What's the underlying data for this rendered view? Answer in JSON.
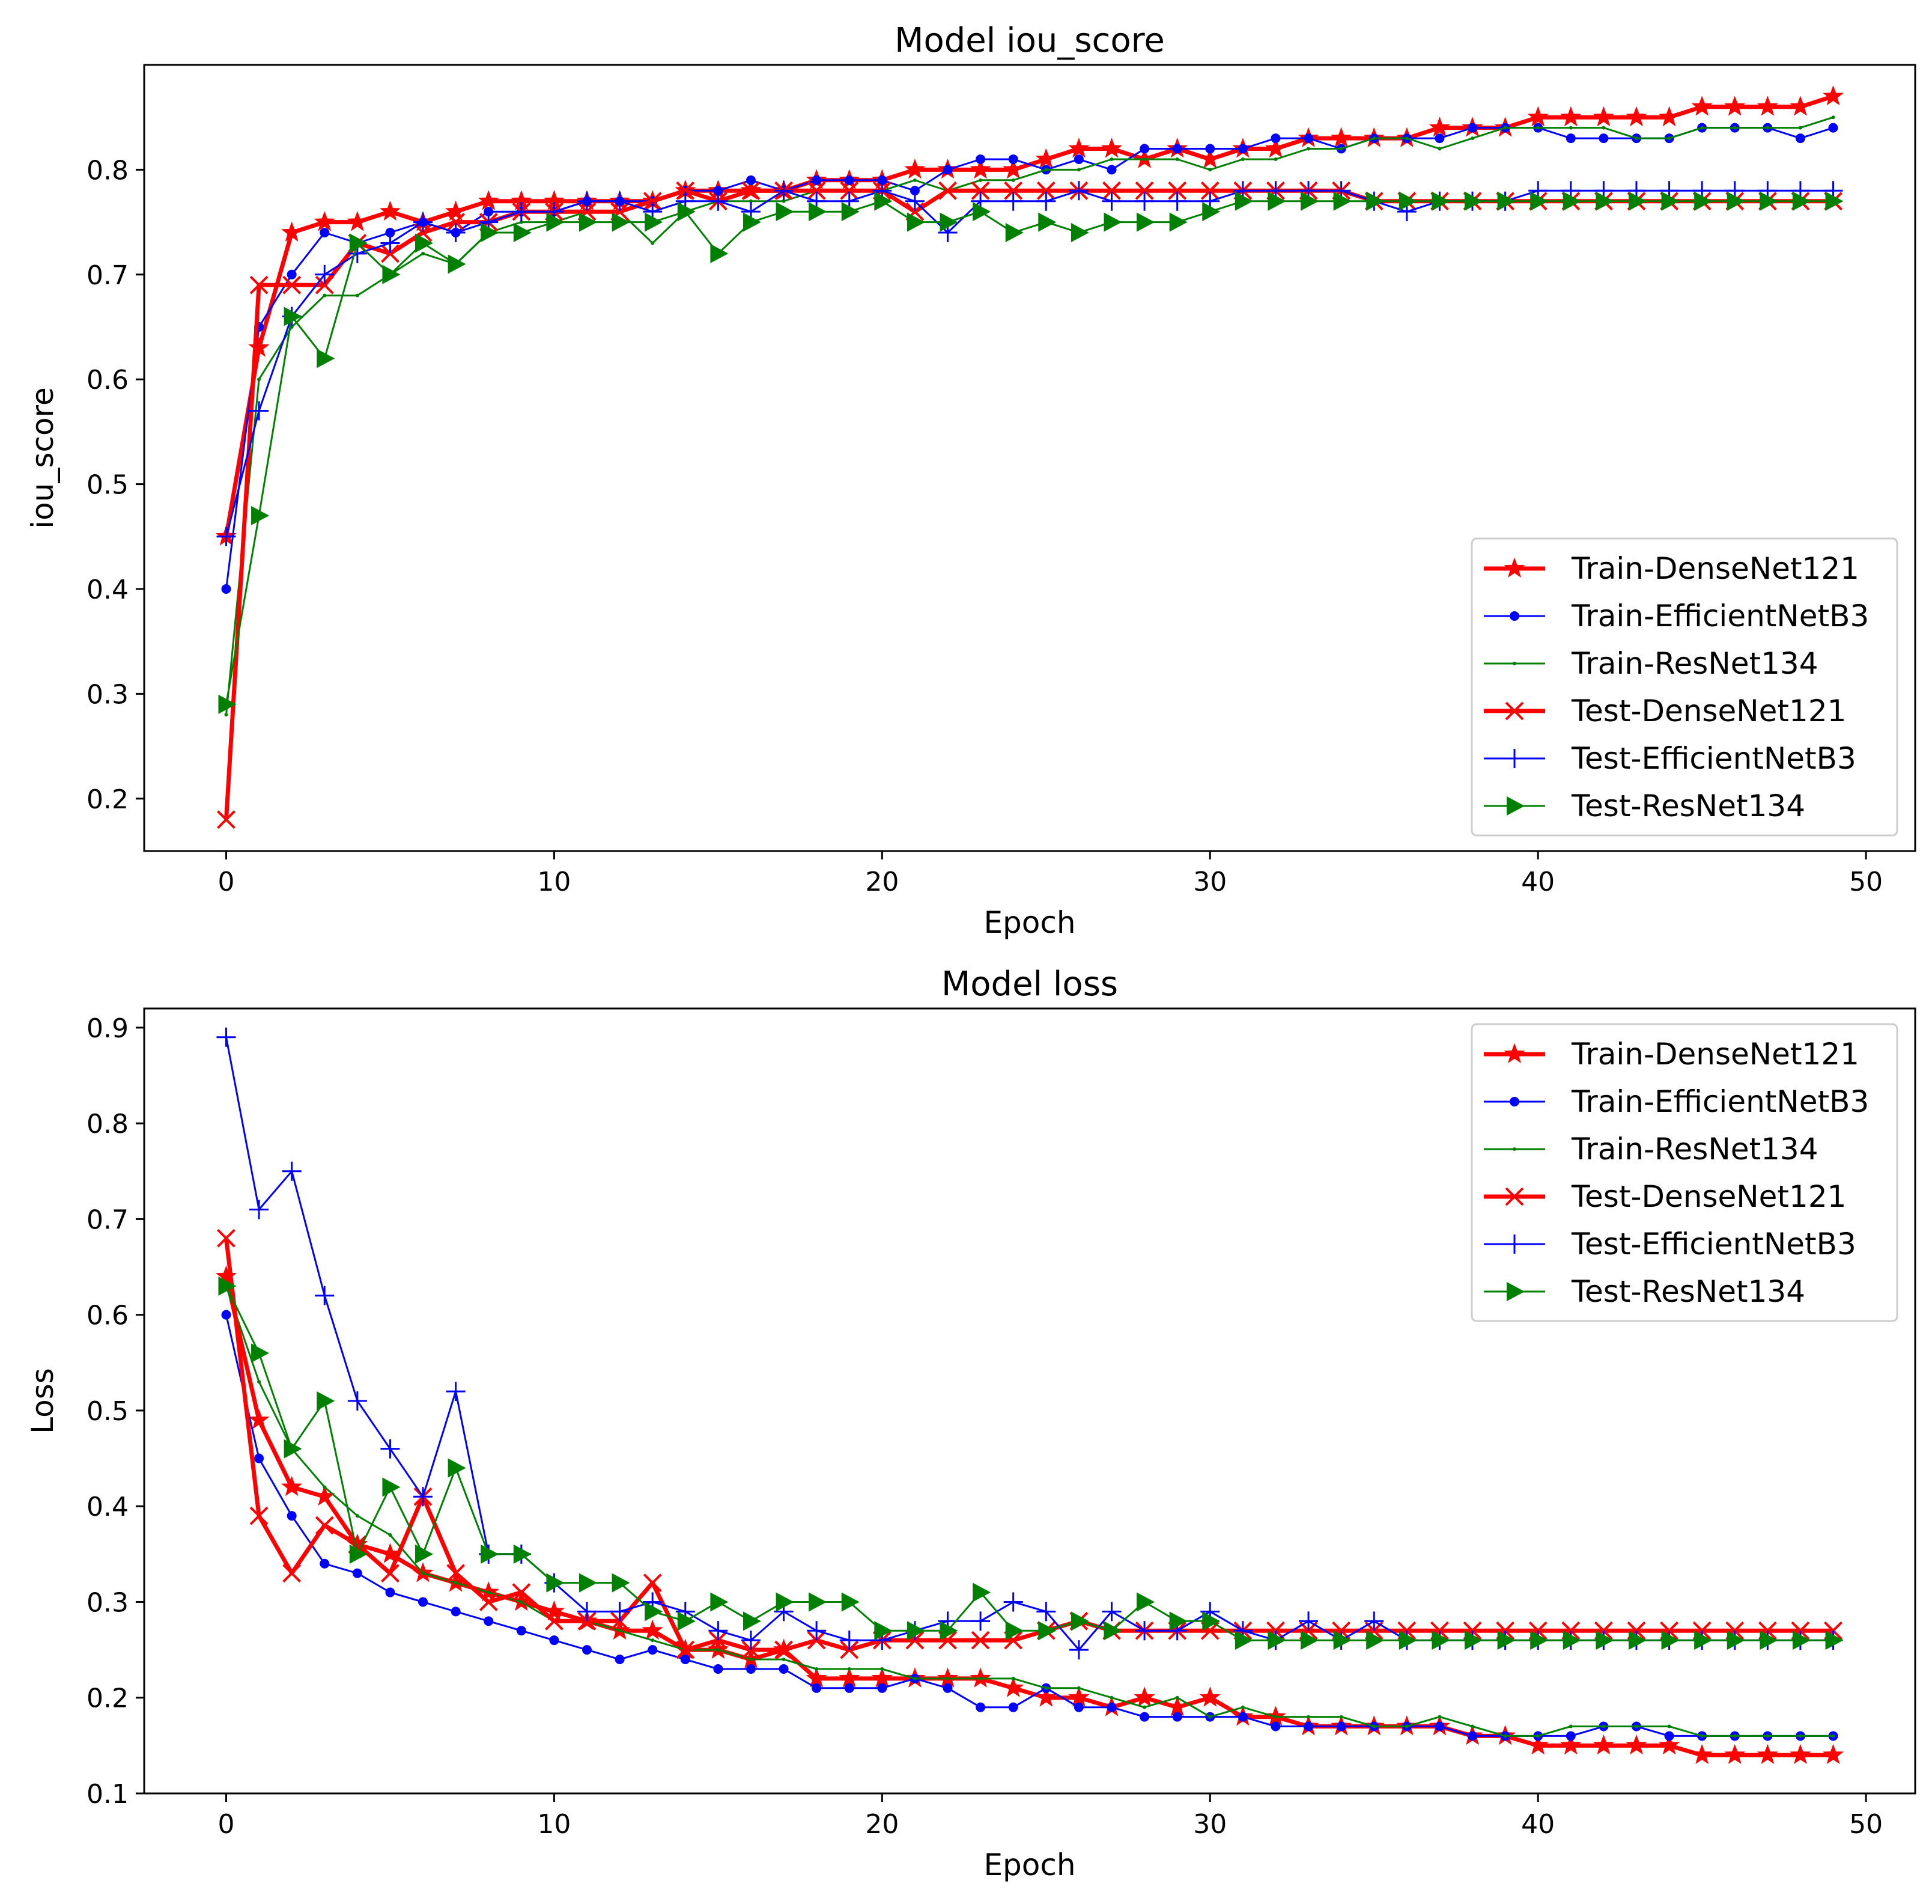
{
  "chart_data": [
    {
      "type": "line",
      "title": "Model iou_score",
      "xlabel": "Epoch",
      "ylabel": "iou_score",
      "xlim": [
        -2.5,
        51.5
      ],
      "ylim": [
        0.15,
        0.9
      ],
      "xticks": [
        0,
        10,
        20,
        30,
        40,
        50
      ],
      "yticks": [
        0.2,
        0.3,
        0.4,
        0.5,
        0.6,
        0.7,
        0.8
      ],
      "legend": "lower-right",
      "grid": false,
      "series": [
        {
          "name": "Train-DenseNet121",
          "color": "#ff0000",
          "marker": "star",
          "width": "thick",
          "values": [
            0.45,
            0.63,
            0.74,
            0.75,
            0.75,
            0.76,
            0.75,
            0.76,
            0.77,
            0.77,
            0.77,
            0.77,
            0.77,
            0.77,
            0.78,
            0.78,
            0.78,
            0.78,
            0.79,
            0.79,
            0.79,
            0.8,
            0.8,
            0.8,
            0.8,
            0.81,
            0.82,
            0.82,
            0.81,
            0.82,
            0.81,
            0.82,
            0.82,
            0.83,
            0.83,
            0.83,
            0.83,
            0.84,
            0.84,
            0.84,
            0.85,
            0.85,
            0.85,
            0.85,
            0.85,
            0.86,
            0.86,
            0.86,
            0.86,
            0.87
          ]
        },
        {
          "name": "Train-EfficientNetB3",
          "color": "#0000ff",
          "marker": "dot",
          "width": "thin",
          "values": [
            0.4,
            0.65,
            0.7,
            0.74,
            0.73,
            0.74,
            0.75,
            0.74,
            0.76,
            0.76,
            0.76,
            0.77,
            0.77,
            0.77,
            0.78,
            0.78,
            0.79,
            0.78,
            0.79,
            0.79,
            0.79,
            0.78,
            0.8,
            0.81,
            0.81,
            0.8,
            0.81,
            0.8,
            0.82,
            0.82,
            0.82,
            0.82,
            0.83,
            0.83,
            0.82,
            0.83,
            0.83,
            0.83,
            0.84,
            0.84,
            0.84,
            0.83,
            0.83,
            0.83,
            0.83,
            0.84,
            0.84,
            0.84,
            0.83,
            0.84
          ]
        },
        {
          "name": "Train-ResNet134",
          "color": "#008000",
          "marker": "small",
          "width": "thin",
          "values": [
            0.28,
            0.6,
            0.65,
            0.68,
            0.68,
            0.7,
            0.72,
            0.71,
            0.74,
            0.75,
            0.75,
            0.76,
            0.76,
            0.73,
            0.76,
            0.77,
            0.77,
            0.77,
            0.78,
            0.78,
            0.78,
            0.79,
            0.78,
            0.79,
            0.79,
            0.8,
            0.8,
            0.81,
            0.81,
            0.81,
            0.8,
            0.81,
            0.81,
            0.82,
            0.82,
            0.83,
            0.83,
            0.82,
            0.83,
            0.84,
            0.84,
            0.84,
            0.84,
            0.83,
            0.83,
            0.84,
            0.84,
            0.84,
            0.84,
            0.85
          ]
        },
        {
          "name": "Test-DenseNet121",
          "color": "#ff0000",
          "marker": "x",
          "width": "thick",
          "values": [
            0.18,
            0.69,
            0.69,
            0.69,
            0.73,
            0.72,
            0.74,
            0.75,
            0.75,
            0.76,
            0.76,
            0.76,
            0.76,
            0.77,
            0.78,
            0.77,
            0.78,
            0.78,
            0.78,
            0.78,
            0.78,
            0.76,
            0.78,
            0.78,
            0.78,
            0.78,
            0.78,
            0.78,
            0.78,
            0.78,
            0.78,
            0.78,
            0.78,
            0.78,
            0.78,
            0.77,
            0.77,
            0.77,
            0.77,
            0.77,
            0.77,
            0.77,
            0.77,
            0.77,
            0.77,
            0.77,
            0.77,
            0.77,
            0.77,
            0.77
          ]
        },
        {
          "name": "Test-EfficientNetB3",
          "color": "#0000ff",
          "marker": "plus",
          "width": "thin",
          "values": [
            0.45,
            0.57,
            0.66,
            0.7,
            0.72,
            0.73,
            0.75,
            0.74,
            0.75,
            0.76,
            0.76,
            0.77,
            0.77,
            0.76,
            0.77,
            0.77,
            0.76,
            0.78,
            0.77,
            0.77,
            0.78,
            0.77,
            0.74,
            0.77,
            0.77,
            0.77,
            0.78,
            0.77,
            0.77,
            0.77,
            0.77,
            0.78,
            0.78,
            0.78,
            0.78,
            0.77,
            0.76,
            0.77,
            0.77,
            0.77,
            0.78,
            0.78,
            0.78,
            0.78,
            0.78,
            0.78,
            0.78,
            0.78,
            0.78,
            0.78
          ]
        },
        {
          "name": "Test-ResNet134",
          "color": "#008000",
          "marker": "triangle",
          "width": "thin",
          "values": [
            0.29,
            0.47,
            0.66,
            0.62,
            0.73,
            0.7,
            0.73,
            0.71,
            0.74,
            0.74,
            0.75,
            0.75,
            0.75,
            0.75,
            0.76,
            0.72,
            0.75,
            0.76,
            0.76,
            0.76,
            0.77,
            0.75,
            0.75,
            0.76,
            0.74,
            0.75,
            0.74,
            0.75,
            0.75,
            0.75,
            0.76,
            0.77,
            0.77,
            0.77,
            0.77,
            0.77,
            0.77,
            0.77,
            0.77,
            0.77,
            0.77,
            0.77,
            0.77,
            0.77,
            0.77,
            0.77,
            0.77,
            0.77,
            0.77,
            0.77
          ]
        }
      ]
    },
    {
      "type": "line",
      "title": "Model loss",
      "xlabel": "Epoch",
      "ylabel": "Loss",
      "xlim": [
        -2.5,
        51.5
      ],
      "ylim": [
        0.1,
        0.92
      ],
      "xticks": [
        0,
        10,
        20,
        30,
        40,
        50
      ],
      "yticks": [
        0.1,
        0.2,
        0.3,
        0.4,
        0.5,
        0.6,
        0.7,
        0.8,
        0.9
      ],
      "legend": "top-right",
      "grid": false,
      "series": [
        {
          "name": "Train-DenseNet121",
          "color": "#ff0000",
          "marker": "star",
          "width": "thick",
          "values": [
            0.64,
            0.49,
            0.42,
            0.41,
            0.36,
            0.35,
            0.33,
            0.32,
            0.31,
            0.3,
            0.29,
            0.28,
            0.27,
            0.27,
            0.25,
            0.25,
            0.24,
            0.25,
            0.22,
            0.22,
            0.22,
            0.22,
            0.22,
            0.22,
            0.21,
            0.2,
            0.2,
            0.19,
            0.2,
            0.19,
            0.2,
            0.18,
            0.18,
            0.17,
            0.17,
            0.17,
            0.17,
            0.17,
            0.16,
            0.16,
            0.15,
            0.15,
            0.15,
            0.15,
            0.15,
            0.14,
            0.14,
            0.14,
            0.14,
            0.14
          ]
        },
        {
          "name": "Train-EfficientNetB3",
          "color": "#0000ff",
          "marker": "dot",
          "width": "thin",
          "values": [
            0.6,
            0.45,
            0.39,
            0.34,
            0.33,
            0.31,
            0.3,
            0.29,
            0.28,
            0.27,
            0.26,
            0.25,
            0.24,
            0.25,
            0.24,
            0.23,
            0.23,
            0.23,
            0.21,
            0.21,
            0.21,
            0.22,
            0.21,
            0.19,
            0.19,
            0.21,
            0.19,
            0.19,
            0.18,
            0.18,
            0.18,
            0.18,
            0.17,
            0.17,
            0.17,
            0.17,
            0.17,
            0.17,
            0.16,
            0.16,
            0.16,
            0.16,
            0.17,
            0.17,
            0.16,
            0.16,
            0.16,
            0.16,
            0.16,
            0.16
          ]
        },
        {
          "name": "Train-ResNet134",
          "color": "#008000",
          "marker": "small",
          "width": "thin",
          "values": [
            0.63,
            0.53,
            0.46,
            0.42,
            0.39,
            0.37,
            0.33,
            0.32,
            0.31,
            0.3,
            0.28,
            0.28,
            0.27,
            0.26,
            0.25,
            0.25,
            0.24,
            0.24,
            0.23,
            0.23,
            0.23,
            0.22,
            0.22,
            0.22,
            0.22,
            0.21,
            0.21,
            0.2,
            0.19,
            0.2,
            0.18,
            0.19,
            0.18,
            0.18,
            0.18,
            0.17,
            0.17,
            0.18,
            0.17,
            0.16,
            0.16,
            0.17,
            0.17,
            0.17,
            0.17,
            0.16,
            0.16,
            0.16,
            0.16,
            0.16
          ]
        },
        {
          "name": "Test-DenseNet121",
          "color": "#ff0000",
          "marker": "x",
          "width": "thick",
          "values": [
            0.68,
            0.39,
            0.33,
            0.38,
            0.36,
            0.33,
            0.41,
            0.33,
            0.3,
            0.31,
            0.28,
            0.28,
            0.28,
            0.32,
            0.25,
            0.26,
            0.25,
            0.25,
            0.26,
            0.25,
            0.26,
            0.26,
            0.26,
            0.26,
            0.26,
            0.27,
            0.28,
            0.27,
            0.27,
            0.27,
            0.27,
            0.27,
            0.27,
            0.27,
            0.27,
            0.27,
            0.27,
            0.27,
            0.27,
            0.27,
            0.27,
            0.27,
            0.27,
            0.27,
            0.27,
            0.27,
            0.27,
            0.27,
            0.27,
            0.27
          ]
        },
        {
          "name": "Test-EfficientNetB3",
          "color": "#0000ff",
          "marker": "plus",
          "width": "thin",
          "values": [
            0.89,
            0.71,
            0.75,
            0.62,
            0.51,
            0.46,
            0.41,
            0.52,
            0.35,
            0.35,
            0.32,
            0.29,
            0.29,
            0.3,
            0.29,
            0.27,
            0.26,
            0.29,
            0.27,
            0.26,
            0.26,
            0.27,
            0.28,
            0.28,
            0.3,
            0.29,
            0.25,
            0.29,
            0.27,
            0.27,
            0.29,
            0.27,
            0.26,
            0.28,
            0.26,
            0.28,
            0.26,
            0.26,
            0.26,
            0.26,
            0.26,
            0.26,
            0.26,
            0.26,
            0.26,
            0.26,
            0.26,
            0.26,
            0.26,
            0.26
          ]
        },
        {
          "name": "Test-ResNet134",
          "color": "#008000",
          "marker": "triangle",
          "width": "thin",
          "values": [
            0.63,
            0.56,
            0.46,
            0.51,
            0.35,
            0.42,
            0.35,
            0.44,
            0.35,
            0.35,
            0.32,
            0.32,
            0.32,
            0.29,
            0.28,
            0.3,
            0.28,
            0.3,
            0.3,
            0.3,
            0.27,
            0.27,
            0.27,
            0.31,
            0.27,
            0.27,
            0.28,
            0.27,
            0.3,
            0.28,
            0.28,
            0.26,
            0.26,
            0.26,
            0.26,
            0.26,
            0.26,
            0.26,
            0.26,
            0.26,
            0.26,
            0.26,
            0.26,
            0.26,
            0.26,
            0.26,
            0.26,
            0.26,
            0.26,
            0.26
          ]
        }
      ]
    }
  ]
}
